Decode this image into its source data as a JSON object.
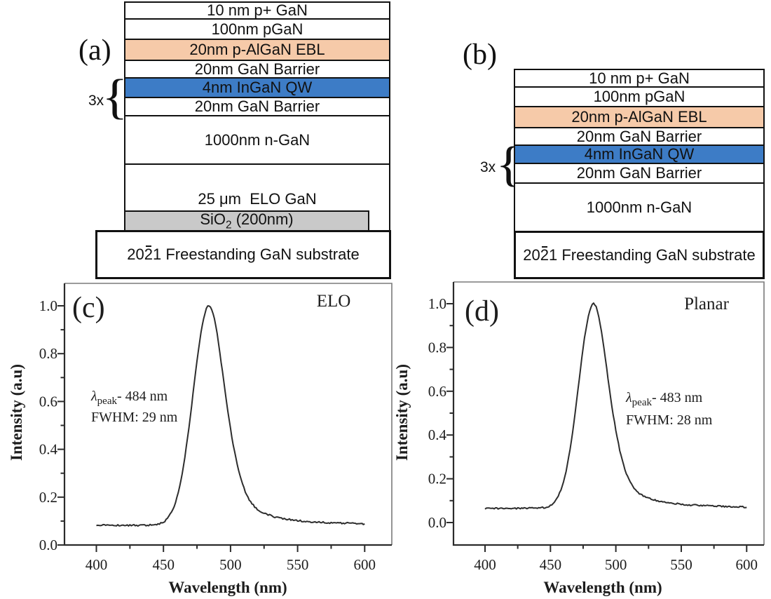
{
  "panel_a": {
    "label": "(a)",
    "multiplier": "3x",
    "brace": "{",
    "layers": [
      {
        "text": "10 nm p+ GaN",
        "fill": "#ffffff"
      },
      {
        "text": "100nm pGaN",
        "fill": "#ffffff"
      },
      {
        "text": "20nm p-AlGaN EBL",
        "fill": "#f6caa9"
      },
      {
        "text": "20nm GaN Barrier",
        "fill": "#ffffff"
      },
      {
        "text": "4nm InGaN QW",
        "fill": "#3d7cc6"
      },
      {
        "text": "20nm GaN Barrier",
        "fill": "#ffffff"
      },
      {
        "text": "1000nm n-GaN",
        "fill": "#ffffff"
      },
      {
        "text": "25 μm  ELO GaN",
        "fill": "#ffffff"
      }
    ],
    "sio2": {
      "base": "SiO",
      "sub": "2",
      "rest": " (200nm)",
      "fill": "#c9c9c9"
    },
    "substrate": {
      "pre": "20",
      "overlined": "2",
      "post": "1 Freestanding GaN substrate"
    }
  },
  "panel_b": {
    "label": "(b)",
    "multiplier": "3x",
    "brace": "{",
    "layers": [
      {
        "text": "10 nm p+ GaN",
        "fill": "#ffffff"
      },
      {
        "text": "100nm pGaN",
        "fill": "#ffffff"
      },
      {
        "text": "20nm p-AlGaN EBL",
        "fill": "#f6caa9"
      },
      {
        "text": "20nm GaN Barrier",
        "fill": "#ffffff"
      },
      {
        "text": "4nm InGaN QW",
        "fill": "#3d7cc6"
      },
      {
        "text": "20nm GaN Barrier",
        "fill": "#ffffff"
      },
      {
        "text": "1000nm n-GaN",
        "fill": "#ffffff"
      }
    ],
    "substrate": {
      "pre": "20",
      "overlined": "2",
      "post": "1 Freestanding GaN substrate"
    }
  },
  "chart_data": [
    {
      "id": "c",
      "type": "line",
      "panel_label": "(c)",
      "series_label": "ELO",
      "xlabel": "Wavelength (nm)",
      "ylabel": "Intensity (a.u)",
      "xticks": [
        400,
        450,
        500,
        550,
        600
      ],
      "yticks": [
        "0.0",
        "0.2",
        "0.4",
        "0.6",
        "0.8",
        "1.0"
      ],
      "x_minor_step": 25,
      "y_minor_step": 0.1,
      "x_data_range": [
        400,
        600
      ],
      "peak_nm": 484,
      "fwhm_nm": 29,
      "baseline_intensity": 0.082,
      "peak_intensity": 1.0,
      "annotation": {
        "lambda_symbol": "λ",
        "lambda_sub": "peak",
        "lambda_value": "- 484 nm",
        "fwhm_text": "FWHM: 29 nm"
      }
    },
    {
      "id": "d",
      "type": "line",
      "panel_label": "(d)",
      "series_label": "Planar",
      "xlabel": "Wavelength (nm)",
      "ylabel": "Intensity (a.u)",
      "xticks": [
        400,
        450,
        500,
        550,
        600
      ],
      "yticks": [
        "0.0",
        "0.2",
        "0.4",
        "0.6",
        "0.8",
        "1.0"
      ],
      "x_minor_step": 25,
      "y_minor_step": 0.1,
      "x_data_range": [
        400,
        600
      ],
      "peak_nm": 483,
      "fwhm_nm": 28,
      "baseline_intensity": 0.065,
      "peak_intensity": 1.0,
      "annotation": {
        "lambda_symbol": "λ",
        "lambda_sub": "peak",
        "lambda_value": "- 483 nm",
        "fwhm_text": "FWHM: 28 nm"
      }
    }
  ]
}
